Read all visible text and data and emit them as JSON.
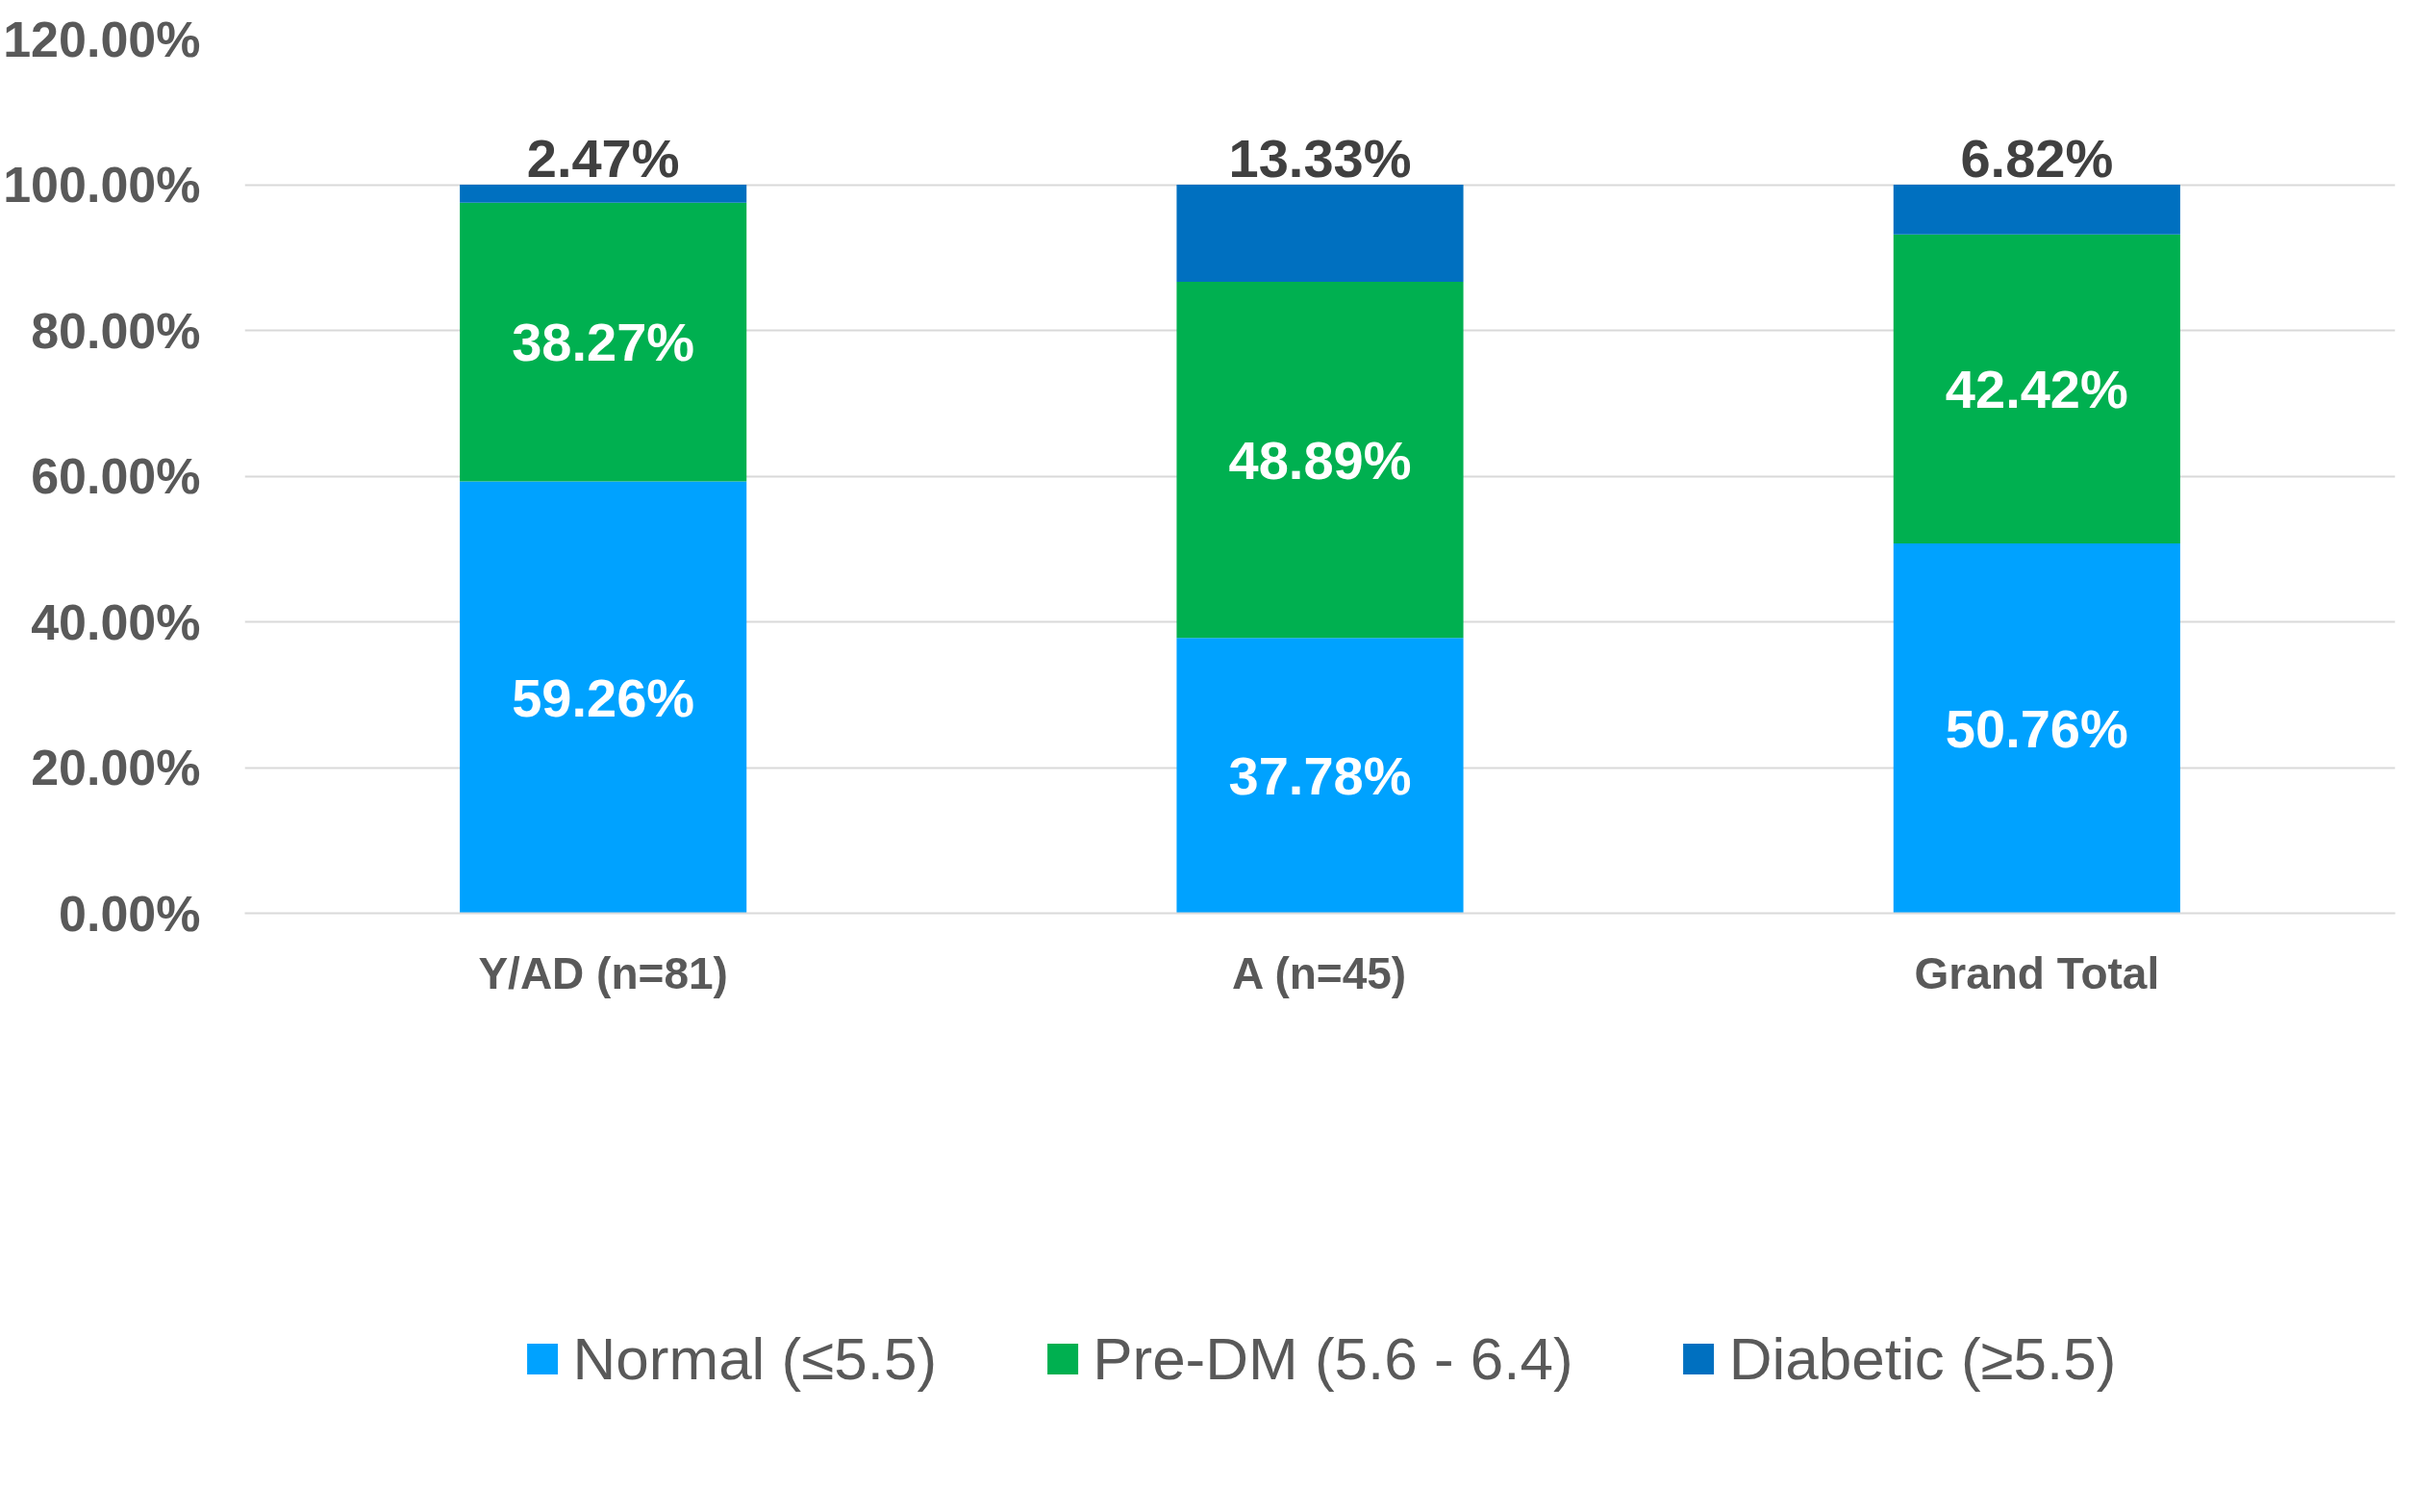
{
  "chart_data": {
    "type": "bar",
    "stacked": true,
    "categories": [
      "Y/AD (n=81)",
      "A (n=45)",
      "Grand Total"
    ],
    "series": [
      {
        "name": "Normal (≤5.5)",
        "color": "#00a2ff",
        "values": [
          59.26,
          37.78,
          50.76
        ],
        "value_labels": [
          "59.26%",
          "37.78%",
          "50.76%"
        ]
      },
      {
        "name": "Pre-DM (5.6 - 6.4)",
        "color": "#00b050",
        "values": [
          38.27,
          48.89,
          42.42
        ],
        "value_labels": [
          "38.27%",
          "48.89%",
          "42.42%"
        ]
      },
      {
        "name": "Diabetic (≥5.5)",
        "color": "#0070c0",
        "values": [
          2.47,
          13.33,
          6.82
        ],
        "value_labels": [
          "2.47%",
          "13.33%",
          "6.82%"
        ]
      }
    ],
    "ylim": [
      0,
      120
    ],
    "yticks": [
      {
        "value": 0,
        "label": "0.00%"
      },
      {
        "value": 20,
        "label": "20.00%"
      },
      {
        "value": 40,
        "label": "40.00%"
      },
      {
        "value": 60,
        "label": "60.00%"
      },
      {
        "value": 80,
        "label": "80.00%"
      },
      {
        "value": 100,
        "label": "100.00%"
      },
      {
        "value": 120,
        "label": "120.00%"
      }
    ],
    "grid": "y",
    "legend": "bottom"
  }
}
